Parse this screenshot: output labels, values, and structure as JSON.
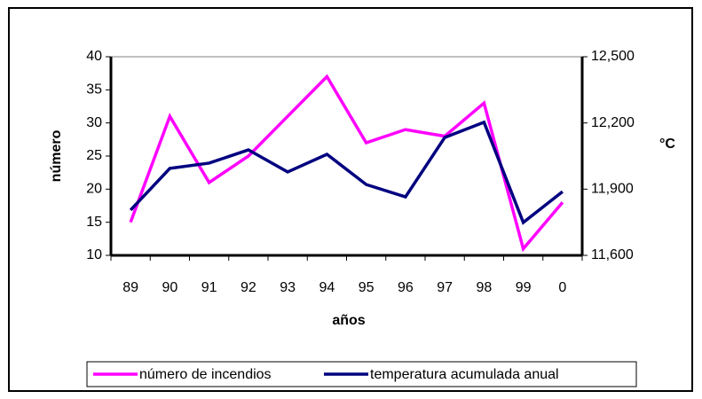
{
  "chart_data": {
    "type": "line",
    "categories": [
      "89",
      "90",
      "91",
      "92",
      "93",
      "94",
      "95",
      "96",
      "97",
      "98",
      "99",
      "0"
    ],
    "series": [
      {
        "name": "número de incendios",
        "color": "#ff00ff",
        "values": [
          15,
          31,
          21,
          25,
          31,
          37,
          27,
          29,
          28,
          33,
          11,
          18
        ]
      },
      {
        "name": "temperatura acumulada anual",
        "color": "#000080",
        "axis": "y2",
        "values": [
          11805,
          11994,
          12018,
          12078,
          11978,
          12058,
          11921,
          11865,
          12134,
          12203,
          11749,
          11889
        ]
      }
    ],
    "xlabel": "años",
    "ylabel": "número",
    "y2label": "°C",
    "ylim": [
      10,
      40
    ],
    "yticks": [
      10,
      15,
      20,
      25,
      30,
      35,
      40
    ],
    "y2lim": [
      11600,
      12500
    ],
    "y2ticks": [
      {
        "value": 11600,
        "label": "11,600"
      },
      {
        "value": 11900,
        "label": "11,900"
      },
      {
        "value": 12200,
        "label": "12,200"
      },
      {
        "value": 12500,
        "label": "12,500"
      }
    ],
    "legend": "bottom"
  }
}
